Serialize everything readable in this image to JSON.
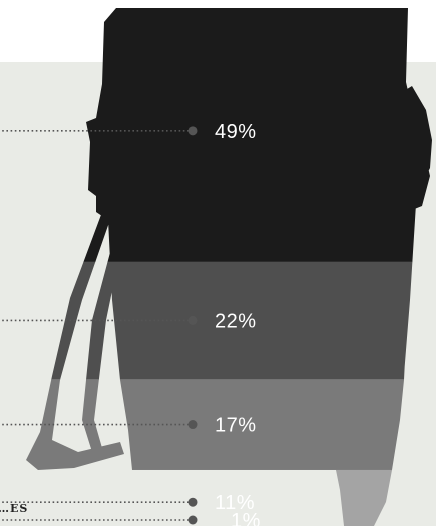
{
  "chart_data": {
    "type": "bar",
    "title": "",
    "categories": [
      "",
      "",
      "",
      "",
      "…ES"
    ],
    "values": [
      49,
      22,
      17,
      11,
      1
    ],
    "labels": [
      "49%",
      "22%",
      "17%",
      "11%",
      "1%"
    ],
    "colors": [
      "#1b1b1b",
      "#4f4f4f",
      "#7a7a7a",
      "#a4a4a4",
      "#c7c7c7"
    ],
    "layout": "stacked-vertical-pictogram",
    "pictogram": "fuel-pump-icon"
  }
}
